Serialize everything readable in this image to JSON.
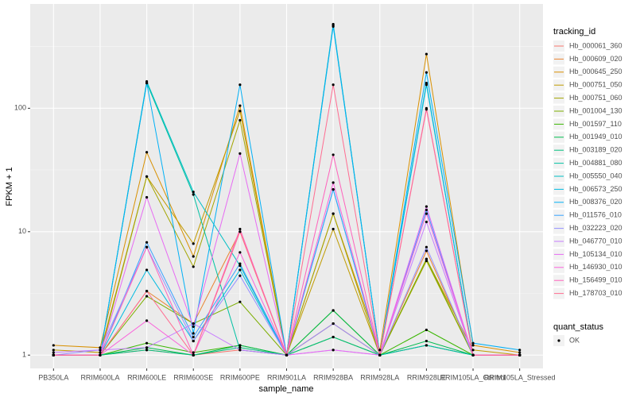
{
  "chart_data": {
    "type": "line",
    "log_scale": true,
    "grid": true,
    "legend": "right",
    "x_label": "sample_name",
    "y_label": "FPKM + 1",
    "categories": [
      "PB350LA",
      "RRIM600LA",
      "RRIM600LE",
      "RRIM600SE",
      "RRIM600PE",
      "RRIM901LA",
      "RRIM928BA",
      "RRIM928LA",
      "RRIM928LE",
      "RRIM105LA_Control",
      "RRIM105LA_Stressed"
    ],
    "ylim": [
      0.78,
      700
    ],
    "yticks": [
      1,
      10,
      100
    ],
    "legend_title": "tracking_id",
    "point_legend": {
      "title": "quant_status",
      "labels": [
        "OK"
      ],
      "color": "#000000"
    },
    "series": [
      {
        "name": "Hb_000061_360",
        "color": "#F8766D",
        "values": [
          1,
          1,
          1.1,
          1,
          1.1,
          1,
          1.8,
          1,
          1.2,
          1,
          1
        ]
      },
      {
        "name": "Hb_000609_020",
        "color": "#EA8331",
        "values": [
          1,
          1,
          3.3,
          1.8,
          10,
          1,
          1.8,
          1,
          7,
          1,
          1
        ]
      },
      {
        "name": "Hb_000645_250",
        "color": "#D89000",
        "values": [
          1.2,
          1.15,
          44,
          6.3,
          105,
          1,
          14,
          1.1,
          275,
          1.2,
          1.05
        ]
      },
      {
        "name": "Hb_000751_050",
        "color": "#C09B00",
        "values": [
          1.1,
          1.05,
          28,
          8,
          95,
          1,
          10.5,
          1,
          6,
          1.1,
          1
        ]
      },
      {
        "name": "Hb_000751_060",
        "color": "#A3A500",
        "values": [
          1,
          1,
          28,
          5.2,
          80,
          1,
          14,
          1,
          5.8,
          1,
          1
        ]
      },
      {
        "name": "Hb_001004_130",
        "color": "#7CAE00",
        "values": [
          1,
          1,
          3,
          1.8,
          2.7,
          1,
          2.3,
          1,
          6,
          1,
          1
        ]
      },
      {
        "name": "Hb_001597_110",
        "color": "#39B600",
        "values": [
          1,
          1,
          1.25,
          1.05,
          1.2,
          1,
          1.4,
          1,
          1.6,
          1,
          1
        ]
      },
      {
        "name": "Hb_001949_010",
        "color": "#00BB4E",
        "values": [
          1,
          1,
          1.15,
          1,
          1.2,
          1,
          2.3,
          1,
          1.3,
          1,
          1
        ]
      },
      {
        "name": "Hb_003189_020",
        "color": "#00BF7D",
        "values": [
          1,
          1,
          1.1,
          1,
          1.15,
          1,
          1.4,
          1,
          1.2,
          1,
          1
        ]
      },
      {
        "name": "Hb_004881_080",
        "color": "#00C1A3",
        "values": [
          1,
          1,
          160,
          20,
          1.1,
          1,
          470,
          1,
          1.2,
          1,
          1
        ]
      },
      {
        "name": "Hb_005550_040",
        "color": "#00BFC4",
        "values": [
          1,
          1,
          165,
          21,
          5.3,
          1,
          480,
          1,
          160,
          1,
          1
        ]
      },
      {
        "name": "Hb_006573_250",
        "color": "#00BAE0",
        "values": [
          1,
          1,
          4.9,
          1.3,
          4.9,
          1,
          22,
          1,
          155,
          1,
          1
        ]
      },
      {
        "name": "Hb_008376_020",
        "color": "#00B0F6",
        "values": [
          1,
          1,
          160,
          1.5,
          155,
          1,
          460,
          1,
          195,
          1.25,
          1.1
        ]
      },
      {
        "name": "Hb_011576_010",
        "color": "#35A2FF",
        "values": [
          1,
          1,
          8.2,
          1.4,
          5.5,
          1,
          22,
          1,
          15,
          1,
          1
        ]
      },
      {
        "name": "Hb_032223_020",
        "color": "#9590FF",
        "values": [
          1,
          1.1,
          7.5,
          1.3,
          4.4,
          1,
          1.8,
          1,
          7.5,
          1,
          1
        ]
      },
      {
        "name": "Hb_046770_010",
        "color": "#C77CFF",
        "values": [
          1.05,
          1.1,
          1.15,
          1.8,
          1.1,
          1,
          1.1,
          1,
          12,
          1,
          1
        ]
      },
      {
        "name": "Hb_105134_010",
        "color": "#E76BF3",
        "values": [
          1,
          1,
          19,
          1.7,
          43,
          1,
          1.1,
          1,
          16,
          1,
          1
        ]
      },
      {
        "name": "Hb_146930_010",
        "color": "#FA62DB",
        "values": [
          1,
          1,
          1.9,
          1,
          6.8,
          1,
          25,
          1,
          14,
          1,
          1
        ]
      },
      {
        "name": "Hb_156499_010",
        "color": "#FF62BC",
        "values": [
          1,
          1,
          7.5,
          1,
          10.5,
          1,
          42,
          1,
          100,
          1,
          1
        ]
      },
      {
        "name": "Hb_178703_010",
        "color": "#FF6C91",
        "values": [
          1,
          1,
          3.3,
          1,
          10,
          1,
          155,
          1,
          98,
          1,
          1
        ]
      }
    ]
  }
}
